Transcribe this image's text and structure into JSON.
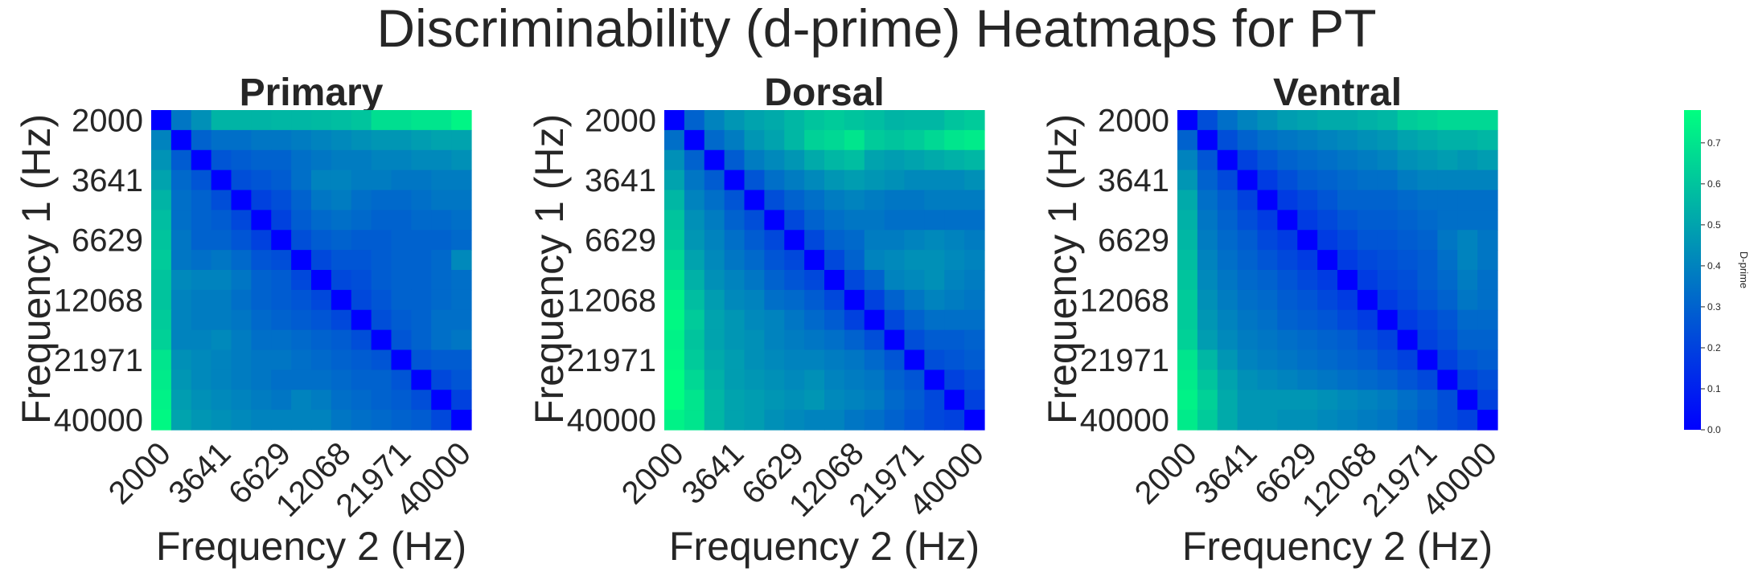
{
  "figure": {
    "title": "Discriminability (d-prime) Heatmaps for PT"
  },
  "colors": {
    "cmap_low": "#0000ff",
    "cmap_high": "#00ff80"
  },
  "chart_data": [
    {
      "type": "heatmap",
      "title": "Primary",
      "xlabel": "Frequency 2 (Hz)",
      "ylabel": "Frequency 1 (Hz)",
      "xticks": [
        "2000",
        "3641",
        "6629",
        "12068",
        "21971",
        "40000"
      ],
      "yticks": [
        "2000",
        "3641",
        "6629",
        "12068",
        "21971",
        "40000"
      ],
      "grid_size": 16,
      "vmin": 0.0,
      "vmax": 0.78,
      "values": [
        [
          0.0,
          0.36,
          0.44,
          0.55,
          0.55,
          0.55,
          0.56,
          0.56,
          0.57,
          0.58,
          0.6,
          0.68,
          0.68,
          0.7,
          0.7,
          0.75
        ],
        [
          0.4,
          0.0,
          0.3,
          0.34,
          0.34,
          0.36,
          0.36,
          0.38,
          0.4,
          0.42,
          0.44,
          0.46,
          0.46,
          0.48,
          0.5,
          0.5
        ],
        [
          0.45,
          0.28,
          0.0,
          0.26,
          0.28,
          0.3,
          0.3,
          0.34,
          0.36,
          0.38,
          0.38,
          0.4,
          0.4,
          0.42,
          0.42,
          0.44
        ],
        [
          0.5,
          0.32,
          0.26,
          0.0,
          0.24,
          0.26,
          0.28,
          0.34,
          0.4,
          0.4,
          0.38,
          0.38,
          0.36,
          0.36,
          0.38,
          0.38
        ],
        [
          0.55,
          0.34,
          0.3,
          0.24,
          0.0,
          0.2,
          0.24,
          0.3,
          0.36,
          0.38,
          0.34,
          0.32,
          0.32,
          0.34,
          0.36,
          0.36
        ],
        [
          0.58,
          0.34,
          0.3,
          0.28,
          0.22,
          0.0,
          0.2,
          0.28,
          0.32,
          0.34,
          0.32,
          0.3,
          0.3,
          0.32,
          0.32,
          0.34
        ],
        [
          0.6,
          0.36,
          0.3,
          0.3,
          0.26,
          0.2,
          0.0,
          0.24,
          0.28,
          0.3,
          0.28,
          0.28,
          0.3,
          0.3,
          0.3,
          0.32
        ],
        [
          0.62,
          0.36,
          0.34,
          0.36,
          0.32,
          0.26,
          0.24,
          0.0,
          0.22,
          0.26,
          0.26,
          0.28,
          0.3,
          0.3,
          0.32,
          0.42
        ],
        [
          0.6,
          0.42,
          0.4,
          0.4,
          0.36,
          0.3,
          0.28,
          0.22,
          0.0,
          0.22,
          0.24,
          0.28,
          0.3,
          0.3,
          0.32,
          0.34
        ],
        [
          0.6,
          0.4,
          0.38,
          0.38,
          0.34,
          0.3,
          0.28,
          0.26,
          0.22,
          0.0,
          0.22,
          0.26,
          0.3,
          0.3,
          0.32,
          0.34
        ],
        [
          0.62,
          0.4,
          0.38,
          0.38,
          0.36,
          0.32,
          0.3,
          0.28,
          0.26,
          0.22,
          0.0,
          0.24,
          0.28,
          0.3,
          0.34,
          0.34
        ],
        [
          0.64,
          0.4,
          0.4,
          0.42,
          0.38,
          0.34,
          0.34,
          0.32,
          0.3,
          0.28,
          0.24,
          0.0,
          0.26,
          0.3,
          0.34,
          0.36
        ],
        [
          0.7,
          0.44,
          0.42,
          0.4,
          0.38,
          0.36,
          0.36,
          0.34,
          0.32,
          0.3,
          0.28,
          0.26,
          0.0,
          0.26,
          0.28,
          0.28
        ],
        [
          0.72,
          0.46,
          0.42,
          0.4,
          0.38,
          0.36,
          0.34,
          0.34,
          0.34,
          0.32,
          0.3,
          0.3,
          0.26,
          0.0,
          0.22,
          0.26
        ],
        [
          0.74,
          0.48,
          0.44,
          0.42,
          0.4,
          0.38,
          0.36,
          0.4,
          0.38,
          0.34,
          0.32,
          0.3,
          0.28,
          0.24,
          0.0,
          0.2
        ],
        [
          0.76,
          0.5,
          0.46,
          0.44,
          0.42,
          0.4,
          0.4,
          0.4,
          0.4,
          0.36,
          0.34,
          0.32,
          0.3,
          0.28,
          0.22,
          0.0
        ]
      ]
    },
    {
      "type": "heatmap",
      "title": "Dorsal",
      "xlabel": "Frequency 2 (Hz)",
      "ylabel": "Frequency 1 (Hz)",
      "xticks": [
        "2000",
        "3641",
        "6629",
        "12068",
        "21971",
        "40000"
      ],
      "yticks": [
        "2000",
        "3641",
        "6629",
        "12068",
        "21971",
        "40000"
      ],
      "grid_size": 16,
      "vmin": 0.0,
      "vmax": 0.78,
      "values": [
        [
          0.0,
          0.3,
          0.4,
          0.46,
          0.5,
          0.52,
          0.56,
          0.6,
          0.62,
          0.6,
          0.58,
          0.55,
          0.56,
          0.56,
          0.6,
          0.62
        ],
        [
          0.34,
          0.0,
          0.32,
          0.38,
          0.46,
          0.5,
          0.56,
          0.64,
          0.66,
          0.7,
          0.62,
          0.6,
          0.62,
          0.66,
          0.7,
          0.72
        ],
        [
          0.44,
          0.3,
          0.0,
          0.28,
          0.38,
          0.42,
          0.46,
          0.52,
          0.56,
          0.58,
          0.5,
          0.48,
          0.5,
          0.52,
          0.54,
          0.56
        ],
        [
          0.5,
          0.36,
          0.28,
          0.0,
          0.26,
          0.34,
          0.38,
          0.42,
          0.46,
          0.48,
          0.46,
          0.44,
          0.42,
          0.42,
          0.42,
          0.44
        ],
        [
          0.56,
          0.4,
          0.34,
          0.26,
          0.0,
          0.24,
          0.3,
          0.34,
          0.38,
          0.4,
          0.38,
          0.36,
          0.36,
          0.38,
          0.38,
          0.38
        ],
        [
          0.6,
          0.44,
          0.38,
          0.3,
          0.24,
          0.0,
          0.22,
          0.3,
          0.34,
          0.36,
          0.36,
          0.34,
          0.34,
          0.34,
          0.34,
          0.34
        ],
        [
          0.62,
          0.46,
          0.4,
          0.34,
          0.28,
          0.22,
          0.0,
          0.22,
          0.3,
          0.32,
          0.38,
          0.38,
          0.4,
          0.42,
          0.4,
          0.38
        ],
        [
          0.66,
          0.5,
          0.42,
          0.36,
          0.32,
          0.26,
          0.22,
          0.0,
          0.22,
          0.3,
          0.4,
          0.42,
          0.44,
          0.44,
          0.42,
          0.4
        ],
        [
          0.7,
          0.54,
          0.44,
          0.4,
          0.36,
          0.3,
          0.26,
          0.22,
          0.0,
          0.22,
          0.3,
          0.4,
          0.42,
          0.44,
          0.4,
          0.38
        ],
        [
          0.74,
          0.58,
          0.48,
          0.42,
          0.4,
          0.34,
          0.32,
          0.28,
          0.22,
          0.0,
          0.2,
          0.3,
          0.36,
          0.4,
          0.38,
          0.36
        ],
        [
          0.76,
          0.62,
          0.5,
          0.46,
          0.42,
          0.4,
          0.36,
          0.32,
          0.28,
          0.2,
          0.0,
          0.22,
          0.3,
          0.34,
          0.34,
          0.34
        ],
        [
          0.74,
          0.6,
          0.5,
          0.46,
          0.44,
          0.4,
          0.38,
          0.36,
          0.34,
          0.3,
          0.24,
          0.0,
          0.24,
          0.28,
          0.28,
          0.3
        ],
        [
          0.76,
          0.62,
          0.52,
          0.48,
          0.44,
          0.42,
          0.4,
          0.4,
          0.38,
          0.36,
          0.32,
          0.26,
          0.0,
          0.24,
          0.26,
          0.28
        ],
        [
          0.78,
          0.66,
          0.54,
          0.48,
          0.46,
          0.44,
          0.42,
          0.44,
          0.4,
          0.38,
          0.36,
          0.3,
          0.26,
          0.0,
          0.2,
          0.24
        ],
        [
          0.78,
          0.7,
          0.56,
          0.5,
          0.48,
          0.46,
          0.44,
          0.46,
          0.42,
          0.4,
          0.38,
          0.32,
          0.28,
          0.22,
          0.0,
          0.2
        ],
        [
          0.74,
          0.7,
          0.56,
          0.5,
          0.48,
          0.44,
          0.42,
          0.4,
          0.4,
          0.36,
          0.34,
          0.3,
          0.26,
          0.22,
          0.2,
          0.0
        ]
      ]
    },
    {
      "type": "heatmap",
      "title": "Ventral",
      "xlabel": "Frequency 2 (Hz)",
      "ylabel": "Frequency 1 (Hz)",
      "xticks": [
        "2000",
        "3641",
        "6629",
        "12068",
        "21971",
        "40000"
      ],
      "yticks": [
        "2000",
        "3641",
        "6629",
        "12068",
        "21971",
        "40000"
      ],
      "grid_size": 16,
      "vmin": 0.0,
      "vmax": 0.78,
      "values": [
        [
          0.0,
          0.24,
          0.34,
          0.4,
          0.44,
          0.48,
          0.5,
          0.52,
          0.52,
          0.54,
          0.56,
          0.62,
          0.64,
          0.66,
          0.66,
          0.66
        ],
        [
          0.3,
          0.0,
          0.24,
          0.3,
          0.34,
          0.36,
          0.38,
          0.4,
          0.42,
          0.44,
          0.46,
          0.5,
          0.52,
          0.54,
          0.54,
          0.56
        ],
        [
          0.4,
          0.26,
          0.0,
          0.2,
          0.26,
          0.3,
          0.32,
          0.34,
          0.36,
          0.38,
          0.4,
          0.44,
          0.46,
          0.48,
          0.46,
          0.48
        ],
        [
          0.46,
          0.3,
          0.22,
          0.0,
          0.18,
          0.24,
          0.28,
          0.3,
          0.32,
          0.34,
          0.34,
          0.38,
          0.4,
          0.4,
          0.4,
          0.4
        ],
        [
          0.52,
          0.34,
          0.28,
          0.2,
          0.0,
          0.18,
          0.22,
          0.26,
          0.3,
          0.3,
          0.3,
          0.32,
          0.34,
          0.34,
          0.34,
          0.34
        ],
        [
          0.54,
          0.36,
          0.3,
          0.24,
          0.18,
          0.0,
          0.18,
          0.22,
          0.26,
          0.28,
          0.28,
          0.3,
          0.32,
          0.34,
          0.34,
          0.34
        ],
        [
          0.56,
          0.38,
          0.32,
          0.28,
          0.22,
          0.18,
          0.0,
          0.18,
          0.22,
          0.26,
          0.26,
          0.28,
          0.3,
          0.36,
          0.4,
          0.36
        ],
        [
          0.58,
          0.4,
          0.34,
          0.3,
          0.26,
          0.22,
          0.18,
          0.0,
          0.18,
          0.22,
          0.24,
          0.26,
          0.28,
          0.34,
          0.4,
          0.36
        ],
        [
          0.6,
          0.42,
          0.36,
          0.32,
          0.3,
          0.26,
          0.22,
          0.18,
          0.0,
          0.18,
          0.22,
          0.24,
          0.28,
          0.32,
          0.38,
          0.34
        ],
        [
          0.62,
          0.44,
          0.38,
          0.34,
          0.32,
          0.28,
          0.26,
          0.22,
          0.18,
          0.0,
          0.18,
          0.22,
          0.26,
          0.3,
          0.36,
          0.34
        ],
        [
          0.62,
          0.46,
          0.4,
          0.36,
          0.34,
          0.3,
          0.28,
          0.26,
          0.22,
          0.18,
          0.0,
          0.18,
          0.22,
          0.26,
          0.32,
          0.32
        ],
        [
          0.64,
          0.48,
          0.42,
          0.38,
          0.36,
          0.34,
          0.32,
          0.3,
          0.28,
          0.24,
          0.2,
          0.0,
          0.2,
          0.24,
          0.3,
          0.3
        ],
        [
          0.7,
          0.56,
          0.46,
          0.4,
          0.38,
          0.36,
          0.34,
          0.32,
          0.3,
          0.28,
          0.24,
          0.2,
          0.0,
          0.2,
          0.26,
          0.28
        ],
        [
          0.72,
          0.6,
          0.5,
          0.44,
          0.42,
          0.4,
          0.38,
          0.36,
          0.34,
          0.32,
          0.3,
          0.26,
          0.22,
          0.0,
          0.2,
          0.24
        ],
        [
          0.74,
          0.64,
          0.52,
          0.46,
          0.46,
          0.46,
          0.46,
          0.44,
          0.42,
          0.4,
          0.38,
          0.34,
          0.3,
          0.24,
          0.0,
          0.2
        ],
        [
          0.72,
          0.62,
          0.52,
          0.46,
          0.46,
          0.44,
          0.44,
          0.42,
          0.4,
          0.38,
          0.36,
          0.32,
          0.28,
          0.24,
          0.2,
          0.0
        ]
      ]
    }
  ],
  "colorbar": {
    "label": "D-prime",
    "ticks": [
      "0.0",
      "0.1",
      "0.2",
      "0.3",
      "0.4",
      "0.5",
      "0.6",
      "0.7"
    ],
    "tick_values": [
      0.0,
      0.1,
      0.2,
      0.3,
      0.4,
      0.5,
      0.6,
      0.7
    ]
  }
}
